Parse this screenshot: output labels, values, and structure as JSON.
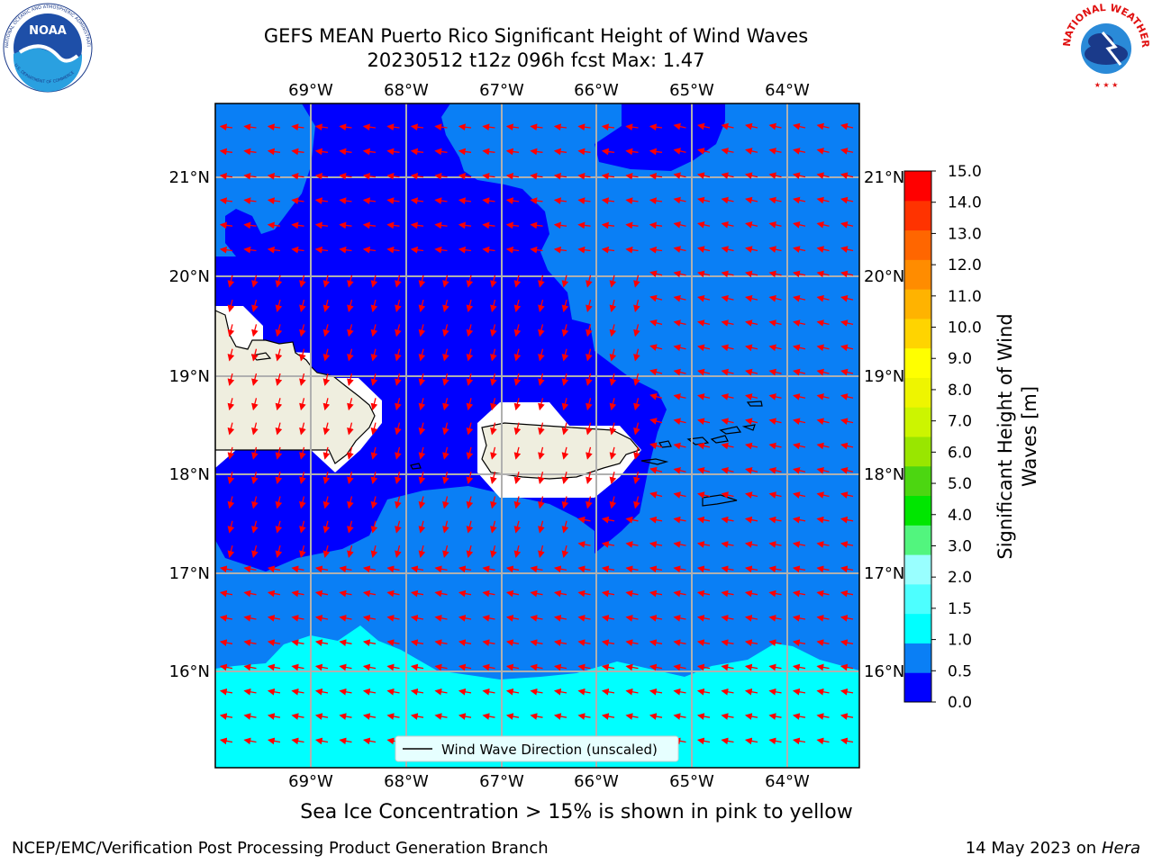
{
  "title_line1": "GEFS MEAN Puerto Rico Significant Height of Wind Waves",
  "title_line2": "20230512 t12z 096h fcst   Max: 1.47",
  "subtitle": "Sea Ice Concentration > 15% is shown in pink to yellow",
  "footer_left": "NCEP/EMC/Verification Post Processing Product Generation Branch",
  "footer_date": "14 May 2023 on",
  "footer_machine": "Hera",
  "logos": {
    "noaa_text": "NOAA",
    "noaa_ring": "NATIONAL OCEANIC AND ATMOSPHERIC ADMINISTRATION",
    "noaa_ring_bottom": "U.S. DEPARTMENT OF COMMERCE",
    "nws_ring": "NATIONAL WEATHER SERVICE"
  },
  "legend_label": "Wind Wave Direction (unscaled)",
  "colorbar": {
    "label_line1": "Significant Height of Wind",
    "label_line2": "Waves [m]",
    "ticks": [
      "0.0",
      "0.5",
      "1.0",
      "1.5",
      "2.0",
      "3.0",
      "4.0",
      "5.0",
      "6.0",
      "7.0",
      "8.0",
      "9.0",
      "10.0",
      "11.0",
      "12.0",
      "13.0",
      "14.0",
      "15.0"
    ],
    "colors": [
      "#0000ff",
      "#0a7ff5",
      "#00ffff",
      "#4dffff",
      "#99ffff",
      "#52f57e",
      "#00e600",
      "#4cd611",
      "#99e600",
      "#ccf500",
      "#eef500",
      "#ffff00",
      "#ffd400",
      "#ffb300",
      "#ff8c00",
      "#ff6600",
      "#ff3300",
      "#ff0000"
    ]
  },
  "map": {
    "lon_labels": [
      "69°W",
      "68°W",
      "67°W",
      "66°W",
      "65°W",
      "64°W"
    ],
    "lat_labels": [
      "21°N",
      "20°N",
      "19°N",
      "18°N",
      "17°N",
      "16°N"
    ],
    "arrow_color": "#ff0000",
    "land_color": "#efeedf",
    "ocean_dark": "#0000ff",
    "ocean_mid": "#0a7ff5",
    "ocean_light": "#00ffff"
  }
}
